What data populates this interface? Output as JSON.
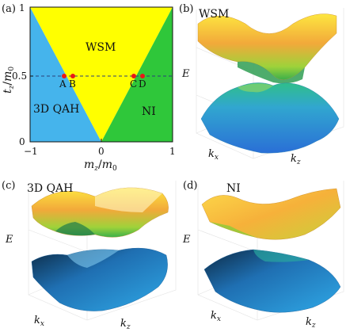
{
  "panels": {
    "a": {
      "label": "(a)",
      "region_labels": {
        "wsm": "WSM",
        "qah": "3D QAH",
        "ni": "NI"
      },
      "points": [
        "A",
        "B",
        "C",
        "D"
      ],
      "colors": {
        "qah": "#45b4ec",
        "wsm": "#ffff00",
        "ni": "#2fc73a",
        "point": "#e81818",
        "dashed": "#2b3f7a"
      }
    },
    "b": {
      "label": "(b)",
      "title": "WSM",
      "elabel": "E"
    },
    "c": {
      "label": "(c)",
      "title": "3D QAH",
      "elabel": "E"
    },
    "d": {
      "label": "(d)",
      "title": "NI",
      "elabel": "E"
    }
  },
  "chart_data": {
    "type": "heatmap",
    "description_of_axes": {
      "xlabel": "mz/m0",
      "ylabel": "tz/m0"
    },
    "x_ticks": [
      "−1",
      "0",
      "1"
    ],
    "y_ticks": [
      "0",
      "0.5",
      "1"
    ],
    "xlim": [
      -1,
      1
    ],
    "ylim": [
      0,
      1
    ],
    "regions": [
      {
        "name": "3D QAH",
        "polygon": [
          [
            -1,
            0
          ],
          [
            0,
            0
          ],
          [
            -1,
            1
          ]
        ]
      },
      {
        "name": "WSM",
        "polygon": [
          [
            -1,
            1
          ],
          [
            0,
            0
          ],
          [
            1,
            1
          ]
        ]
      },
      {
        "name": "NI",
        "polygon": [
          [
            0,
            0
          ],
          [
            1,
            0
          ],
          [
            1,
            1
          ]
        ]
      }
    ],
    "dashed_line_y": 0.5,
    "points": [
      {
        "name": "A",
        "x": -0.55,
        "y": 0.5
      },
      {
        "name": "B",
        "x": -0.43,
        "y": 0.5
      },
      {
        "name": "C",
        "x": 0.44,
        "y": 0.5
      },
      {
        "name": "D",
        "x": 0.56,
        "y": 0.5
      }
    ]
  },
  "axis_labels": {
    "x": {
      "main": "m",
      "sub1": "z",
      "slash": "/",
      "main2": "m",
      "sub2": "0"
    },
    "y": {
      "main": "t",
      "sub1": "z",
      "slash": "/",
      "main2": "m",
      "sub2": "0"
    },
    "kx": {
      "main": "k",
      "sub": "x"
    },
    "kz": {
      "main": "k",
      "sub": "z"
    }
  }
}
